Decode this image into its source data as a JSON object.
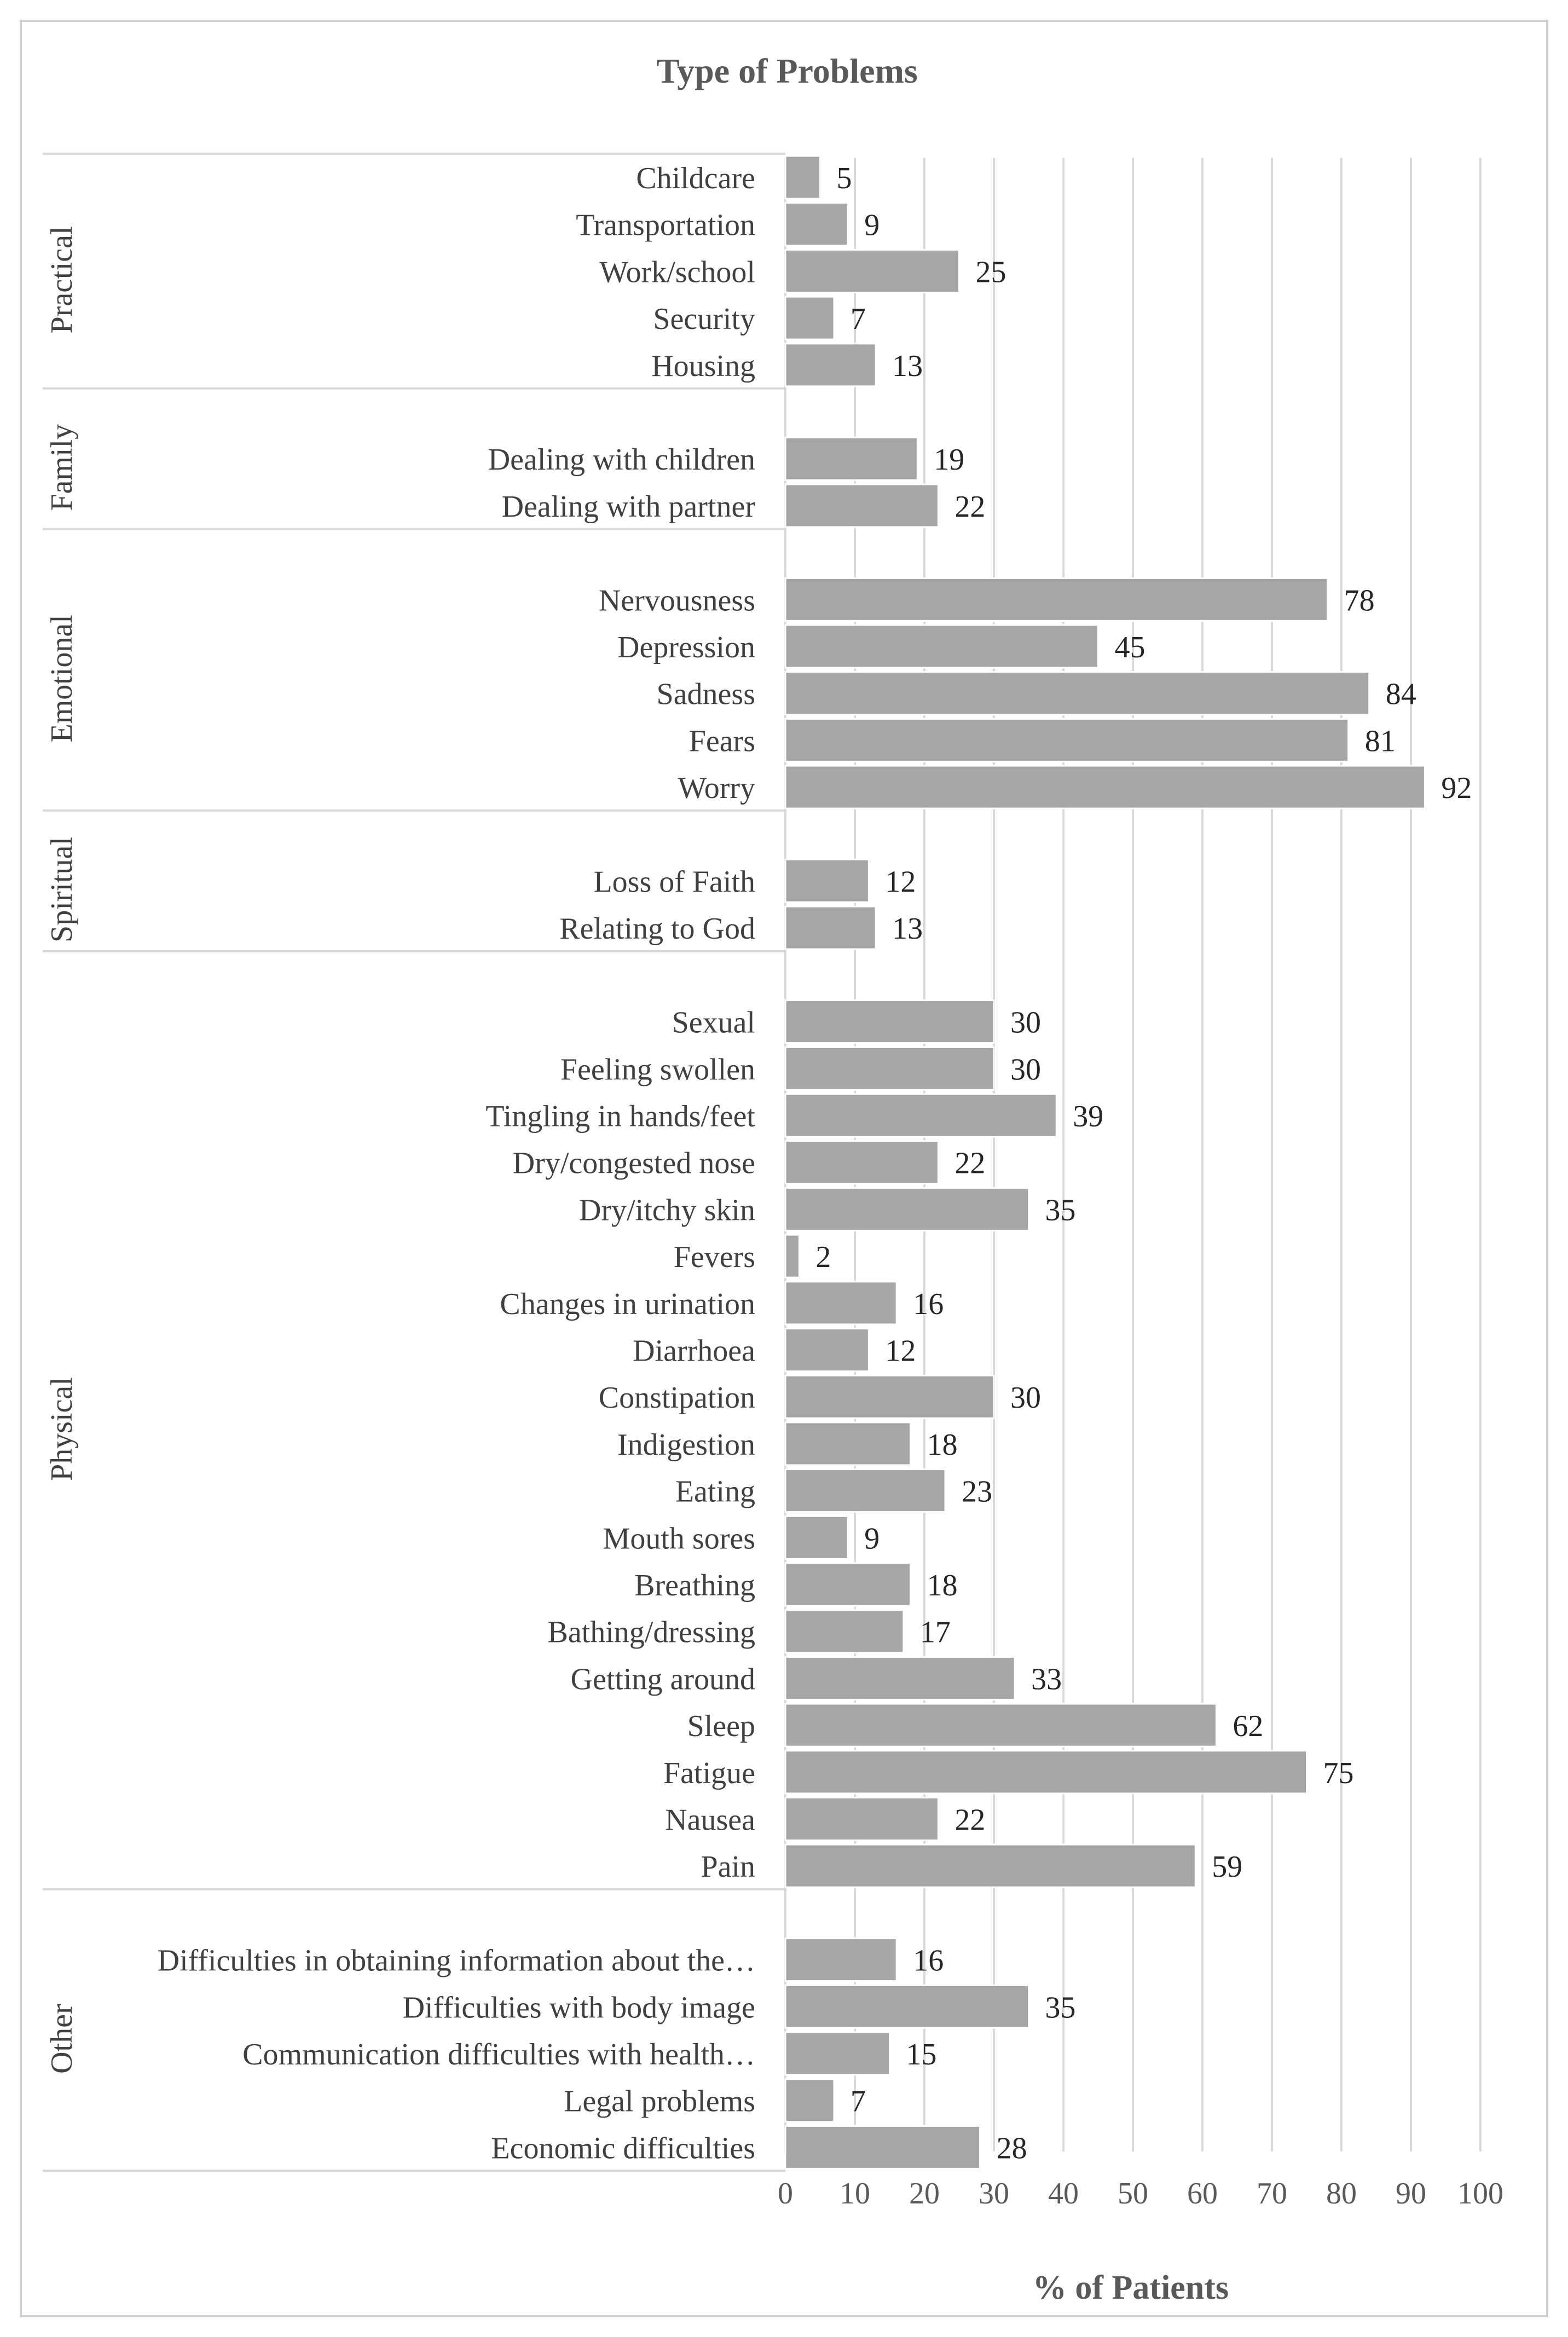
{
  "chart_data": {
    "type": "bar",
    "orientation": "horizontal",
    "title": "Type of Problems",
    "xlabel": "% of Patients",
    "ylabel": "",
    "xlim": [
      0,
      100
    ],
    "xticks": [
      0,
      10,
      20,
      30,
      40,
      50,
      60,
      70,
      80,
      90,
      100
    ],
    "grid": "vertical",
    "legend": "none",
    "bar_color": "#a6a6a6",
    "grid_color": "#d9d9d9",
    "groups": [
      {
        "name": "Practical",
        "items": [
          {
            "label": "Childcare",
            "value": 5
          },
          {
            "label": "Transportation",
            "value": 9
          },
          {
            "label": "Work/school",
            "value": 25
          },
          {
            "label": "Security",
            "value": 7
          },
          {
            "label": "Housing",
            "value": 13
          }
        ]
      },
      {
        "name": "Family",
        "items": [
          {
            "label": "Dealing with children",
            "value": 19
          },
          {
            "label": "Dealing with partner",
            "value": 22
          }
        ]
      },
      {
        "name": "Emotional",
        "items": [
          {
            "label": "Nervousness",
            "value": 78
          },
          {
            "label": "Depression",
            "value": 45
          },
          {
            "label": "Sadness",
            "value": 84
          },
          {
            "label": "Fears",
            "value": 81
          },
          {
            "label": "Worry",
            "value": 92
          }
        ]
      },
      {
        "name": "Spiritual",
        "items": [
          {
            "label": "Loss of Faith",
            "value": 12
          },
          {
            "label": "Relating to God",
            "value": 13
          }
        ]
      },
      {
        "name": "Physical",
        "items": [
          {
            "label": "Sexual",
            "value": 30
          },
          {
            "label": "Feeling swollen",
            "value": 30
          },
          {
            "label": "Tingling in hands/feet",
            "value": 39
          },
          {
            "label": "Dry/congested nose",
            "value": 22
          },
          {
            "label": "Dry/itchy skin",
            "value": 35
          },
          {
            "label": "Fevers",
            "value": 2
          },
          {
            "label": "Changes in urination",
            "value": 16
          },
          {
            "label": "Diarrhoea",
            "value": 12
          },
          {
            "label": "Constipation",
            "value": 30
          },
          {
            "label": "Indigestion",
            "value": 18
          },
          {
            "label": "Eating",
            "value": 23
          },
          {
            "label": "Mouth sores",
            "value": 9
          },
          {
            "label": "Breathing",
            "value": 18
          },
          {
            "label": "Bathing/dressing",
            "value": 17
          },
          {
            "label": "Getting around",
            "value": 33
          },
          {
            "label": "Sleep",
            "value": 62
          },
          {
            "label": "Fatigue",
            "value": 75
          },
          {
            "label": "Nausea",
            "value": 22
          },
          {
            "label": "Pain",
            "value": 59
          }
        ]
      },
      {
        "name": "Other",
        "items": [
          {
            "label": "Difficulties in obtaining information about the…",
            "value": 16
          },
          {
            "label": "Difficulties with body image",
            "value": 35
          },
          {
            "label": "Communication difficulties with health…",
            "value": 15
          },
          {
            "label": "Legal problems",
            "value": 7
          },
          {
            "label": "Economic difficulties",
            "value": 28
          }
        ]
      }
    ]
  }
}
